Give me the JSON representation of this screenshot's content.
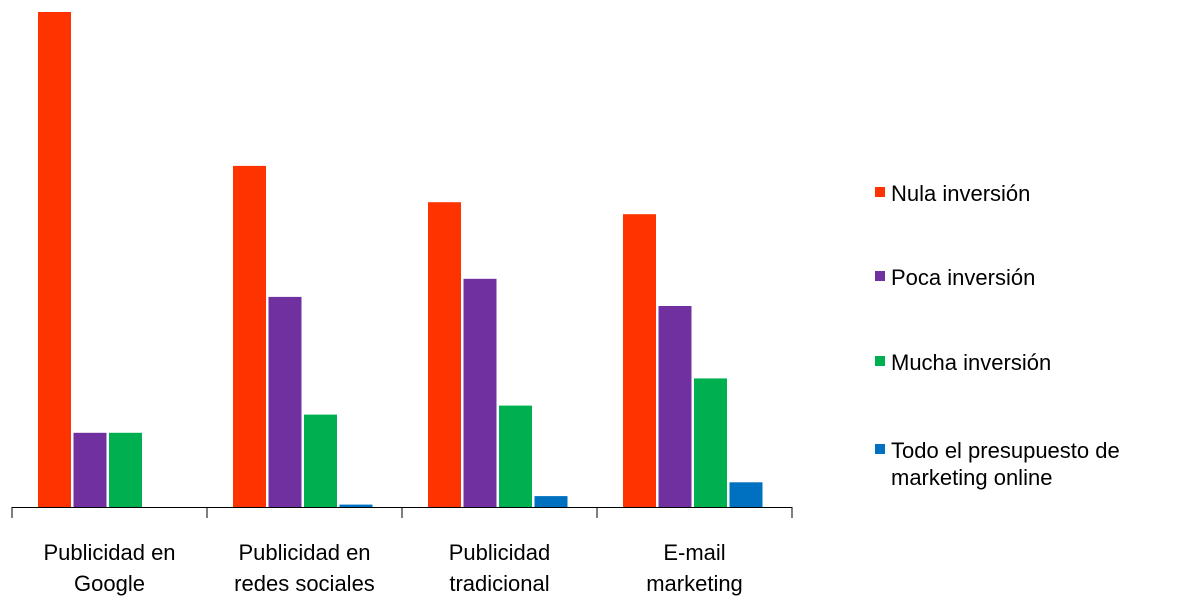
{
  "chart_data": {
    "type": "bar",
    "title": "",
    "xlabel": "",
    "ylabel": "",
    "categories": [
      [
        "Publicidad en",
        "Google"
      ],
      [
        "Publicidad en",
        "redes sociales"
      ],
      [
        "Publicidad",
        "tradicional"
      ],
      [
        "E-mail",
        "marketing"
      ]
    ],
    "series": [
      {
        "name": "Nula inversión",
        "color": "#FF3300",
        "values": [
          82,
          56.5,
          50.5,
          48.5
        ]
      },
      {
        "name": "Poca inversión",
        "color": "#7030A0",
        "values": [
          12.3,
          34.8,
          37.8,
          33.3
        ]
      },
      {
        "name": "Mucha inversión",
        "color": "#00B050",
        "values": [
          12.3,
          15.3,
          16.8,
          21.3
        ]
      },
      {
        "name": "Todo el presupuesto de marketing online",
        "color": "#0070C0",
        "values": [
          0,
          0.4,
          1.8,
          4.1
        ]
      }
    ],
    "ylim": [
      0,
      82
    ],
    "grid": false,
    "legend_position": "right"
  },
  "legend": {
    "items": [
      {
        "label": "Nula inversión"
      },
      {
        "label": "Poca inversión"
      },
      {
        "label": "Mucha inversión"
      },
      {
        "label": "Todo el presupuesto de marketing online"
      }
    ]
  }
}
